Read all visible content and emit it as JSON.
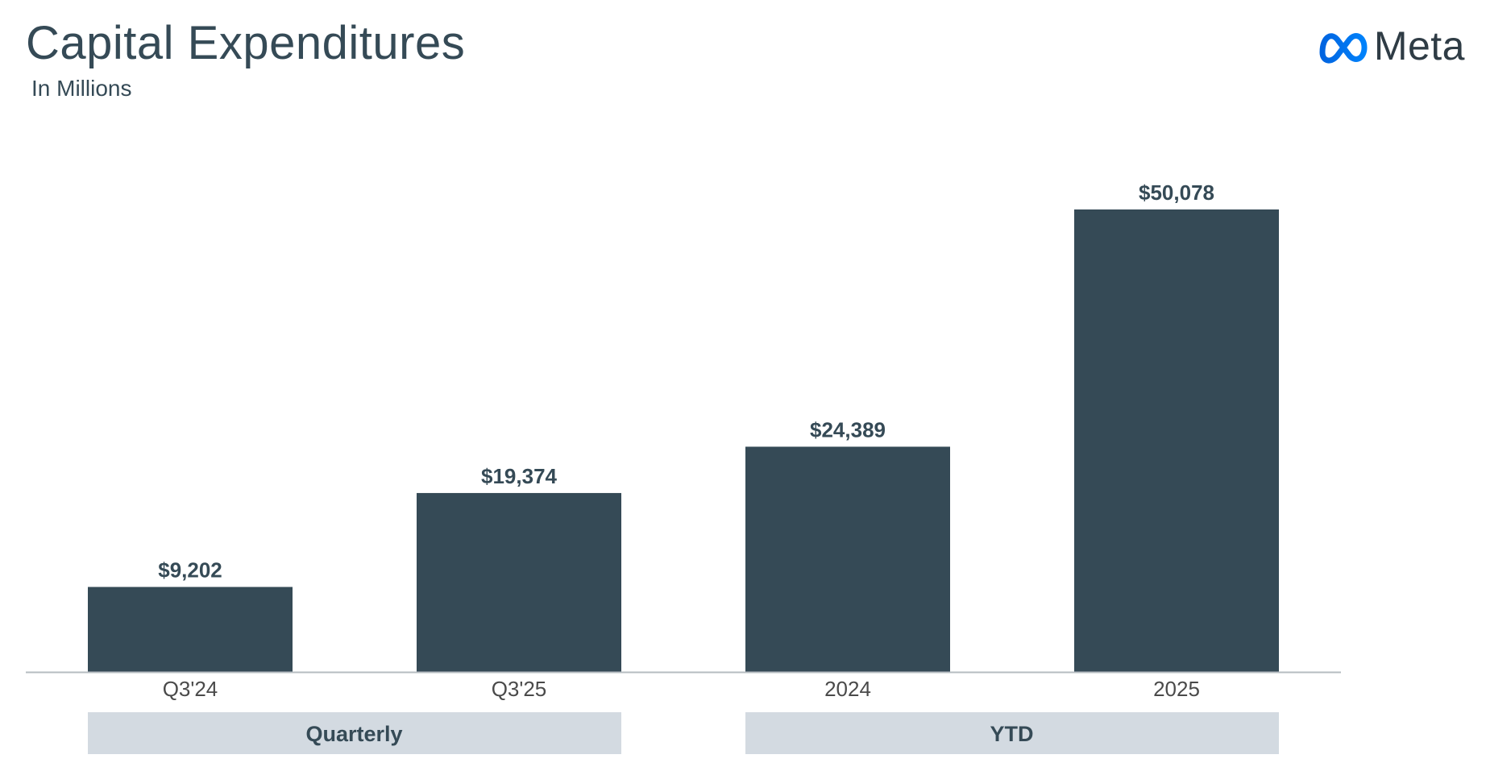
{
  "header": {
    "title": "Capital Expenditures",
    "subtitle": "In Millions",
    "brand_name": "Meta",
    "brand_icon": "meta-infinity-logo-icon",
    "brand_color": "#1877f2"
  },
  "colors": {
    "bar": "#354a56",
    "text": "#354a56",
    "axis": "#b6bcc1",
    "group_box": "#d3dae1",
    "tick_label": "#4a4a4a"
  },
  "chart_data": {
    "type": "bar",
    "title": "Capital Expenditures",
    "subtitle": "In Millions",
    "categories": [
      "Q3'24",
      "Q3'25",
      "2024",
      "2025"
    ],
    "values": [
      9202,
      19374,
      24389,
      50078
    ],
    "value_labels": [
      "$9,202",
      "$19,374",
      "$24,389",
      "$50,078"
    ],
    "groups": [
      {
        "label": "Quarterly",
        "categories": [
          "Q3'24",
          "Q3'25"
        ]
      },
      {
        "label": "YTD",
        "categories": [
          "2024",
          "2025"
        ]
      }
    ],
    "xlabel": "",
    "ylabel": "",
    "ylim": [
      0,
      55000
    ],
    "grid": false,
    "legend": "none"
  }
}
